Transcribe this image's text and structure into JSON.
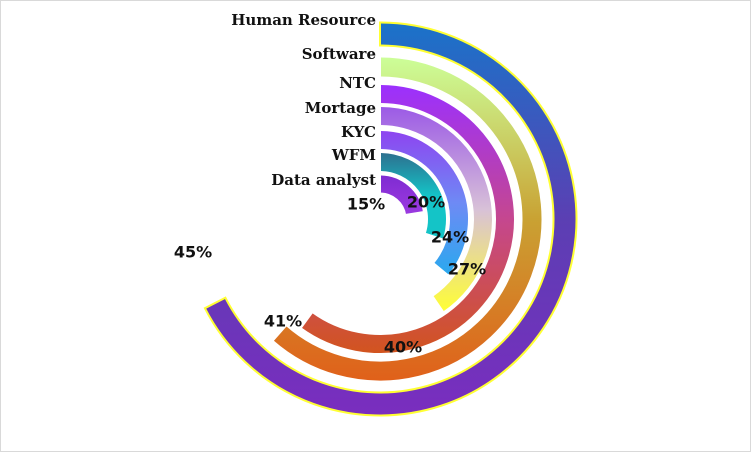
{
  "chart_data": {
    "type": "radial-bar",
    "title": "",
    "max_value": 50,
    "series": [
      {
        "category": "Human Resource",
        "value": 45,
        "value_label": "45%",
        "colors": [
          "#1a73c9",
          "#5b3fb3",
          "#7a2dbf"
        ],
        "outline": "#ffff33"
      },
      {
        "category": "Software",
        "value": 41,
        "value_label": "41%",
        "colors": [
          "#ccff99",
          "#c9a233",
          "#e0601a"
        ],
        "outline": "#ffffff"
      },
      {
        "category": "NTC",
        "value": 40,
        "value_label": "40%",
        "colors": [
          "#9b30ff",
          "#c5478f",
          "#d2541e"
        ],
        "outline": "#ffffff"
      },
      {
        "category": "Mortage",
        "value": 27,
        "value_label": "27%",
        "colors": [
          "#9b59e6",
          "#d8c1d8",
          "#ffff33"
        ],
        "outline": "#ffffff"
      },
      {
        "category": "KYC",
        "value": 24,
        "value_label": "24%",
        "colors": [
          "#8e44f0",
          "#6e8af5",
          "#29a9ee"
        ],
        "outline": "#ffffff"
      },
      {
        "category": "WFM",
        "value": 20,
        "value_label": "20%",
        "colors": [
          "#2e6e8e",
          "#14c4c7",
          "#14c4c7"
        ],
        "outline": "#ffffff"
      },
      {
        "category": "Data analyst",
        "value": 15,
        "value_label": "15%",
        "colors": [
          "#7d2bd1",
          "#8e33d9",
          "#9b3ae0"
        ],
        "outline": "#ffffff"
      }
    ]
  }
}
